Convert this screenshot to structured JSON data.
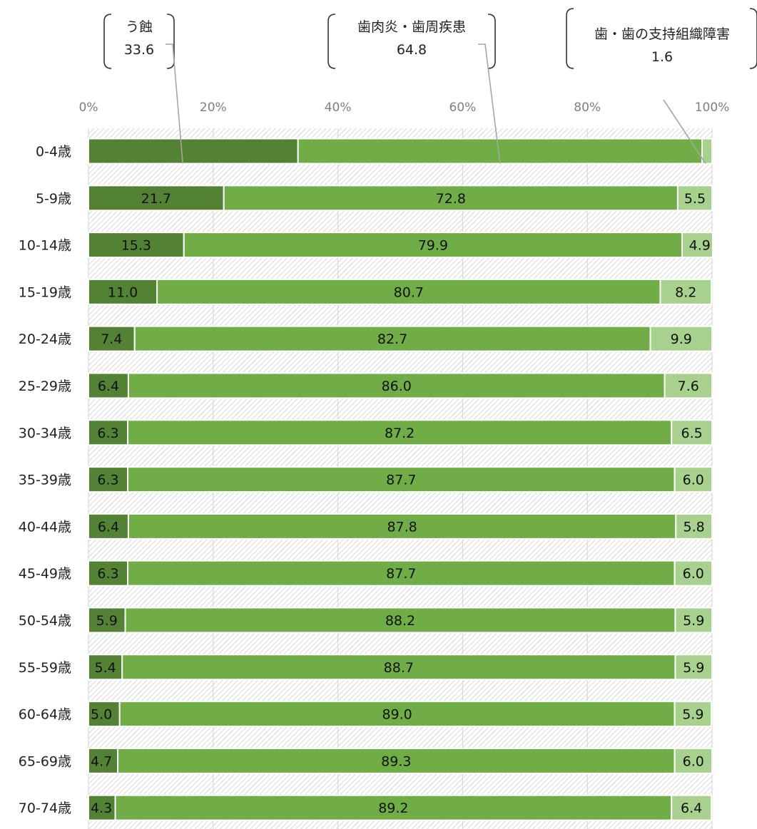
{
  "chart_data": {
    "type": "bar",
    "orientation": "horizontal",
    "stacked": "percent",
    "x_tick_labels": [
      "0%",
      "20%",
      "40%",
      "60%",
      "80%",
      "100%"
    ],
    "xlim": [
      0,
      100
    ],
    "grid": true,
    "categories": [
      "0-4歳",
      "5-9歳",
      "10-14歳",
      "15-19歳",
      "20-24歳",
      "25-29歳",
      "30-34歳",
      "35-39歳",
      "40-44歳",
      "45-49歳",
      "50-54歳",
      "55-59歳",
      "60-64歳",
      "65-69歳",
      "70-74歳"
    ],
    "series": [
      {
        "name": "う蝕",
        "color": "#548235",
        "values": [
          33.6,
          21.7,
          15.3,
          11.0,
          7.4,
          6.4,
          6.3,
          6.3,
          6.4,
          6.3,
          5.9,
          5.4,
          5.0,
          4.7,
          4.3
        ]
      },
      {
        "name": "歯肉炎・歯周疾患",
        "color": "#70ad47",
        "values": [
          64.8,
          72.8,
          79.9,
          80.7,
          82.7,
          86.0,
          87.2,
          87.7,
          87.8,
          87.7,
          88.2,
          88.7,
          89.0,
          89.3,
          89.2
        ]
      },
      {
        "name": "歯・歯の支持組織障害",
        "color": "#a9d18e",
        "values": [
          1.6,
          5.5,
          4.9,
          8.2,
          9.9,
          7.6,
          6.5,
          6.0,
          5.8,
          6.0,
          5.9,
          5.9,
          5.9,
          6.0,
          6.4
        ]
      }
    ],
    "data_label_strings": [
      [
        null,
        null,
        null
      ],
      [
        "21.7",
        "72.8",
        "5.5"
      ],
      [
        "15.3",
        "79.9",
        "4.9"
      ],
      [
        "11.0",
        "80.7",
        "8.2"
      ],
      [
        "7.4",
        "82.7",
        "9.9"
      ],
      [
        "6.4",
        "86.0",
        "7.6"
      ],
      [
        "6.3",
        "87.2",
        "6.5"
      ],
      [
        "6.3",
        "87.7",
        "6.0"
      ],
      [
        "6.4",
        "87.8",
        "5.8"
      ],
      [
        "6.3",
        "87.7",
        "6.0"
      ],
      [
        "5.9",
        "88.2",
        "5.9"
      ],
      [
        "5.4",
        "88.7",
        "5.9"
      ],
      [
        "5.0",
        "89.0",
        "5.9"
      ],
      [
        "4.7",
        "89.3",
        "6.0"
      ],
      [
        "4.3",
        "89.2",
        "6.4"
      ]
    ],
    "callouts": [
      {
        "label": "う蝕",
        "value": "33.6",
        "series_index": 0
      },
      {
        "label": "歯肉炎・歯周疾患",
        "value": "64.8",
        "series_index": 1
      },
      {
        "label": "歯・歯の支持組織障害",
        "value": "1.6",
        "series_index": 2
      }
    ]
  }
}
